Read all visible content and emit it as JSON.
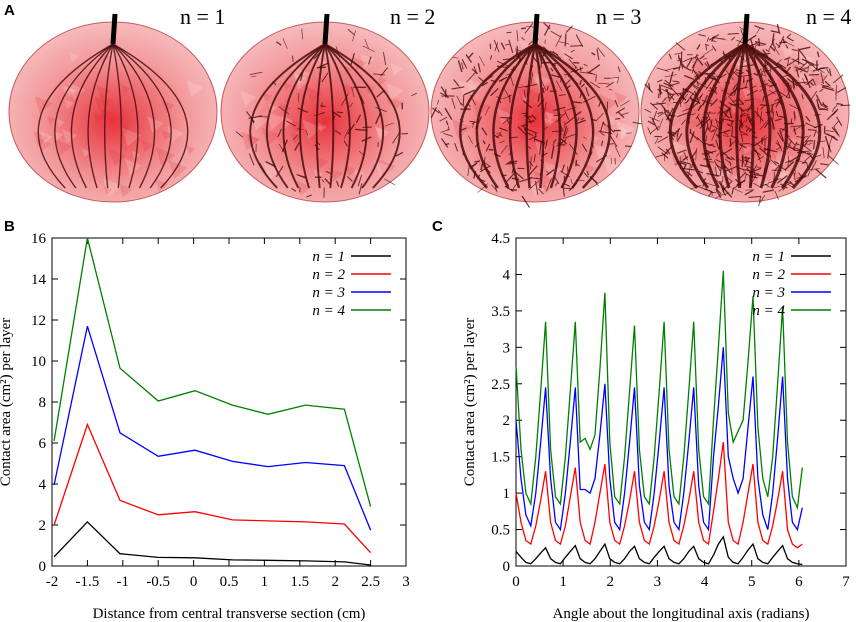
{
  "panels": {
    "a": "A",
    "b": "B",
    "c": "C"
  },
  "models": [
    {
      "label": "n = 1",
      "density": 1
    },
    {
      "label": "n = 2",
      "density": 2
    },
    {
      "label": "n = 3",
      "density": 3
    },
    {
      "label": "n = 4",
      "density": 4
    }
  ],
  "colors": {
    "fruit": "#e8323a",
    "fruit_light": "#f39a9c",
    "vessel": "#4a0b0b"
  },
  "chart_data": [
    {
      "type": "line",
      "xlabel": "Distance from central transverse section (cm)",
      "ylabel": "Contact area (cm²) per layer",
      "xlim": [
        -2,
        3
      ],
      "ylim": [
        0,
        16
      ],
      "xticks": [
        "-2",
        "-1.5",
        "-1",
        "-0.5",
        "0",
        "0.5",
        "1",
        "1.5",
        "2",
        "2.5",
        "3"
      ],
      "yticks": [
        "0",
        "2",
        "4",
        "6",
        "8",
        "10",
        "12",
        "14",
        "16"
      ],
      "x": [
        -1.97,
        -1.5,
        -1.04,
        -0.5,
        0.02,
        0.55,
        1.05,
        1.58,
        2.13,
        2.5
      ],
      "series": [
        {
          "name": "n = 1",
          "color": "#000000",
          "values": [
            0.45,
            2.15,
            0.6,
            0.42,
            0.4,
            0.3,
            0.28,
            0.25,
            0.2,
            0.05
          ]
        },
        {
          "name": "n = 2",
          "color": "#ff0000",
          "values": [
            2.0,
            6.9,
            3.2,
            2.5,
            2.65,
            2.25,
            2.2,
            2.15,
            2.05,
            0.65
          ]
        },
        {
          "name": "n = 3",
          "color": "#0000ff",
          "values": [
            3.95,
            11.7,
            6.5,
            5.35,
            5.65,
            5.1,
            4.85,
            5.05,
            4.9,
            1.75
          ]
        },
        {
          "name": "n = 4",
          "color": "#008000",
          "values": [
            6.1,
            16.0,
            9.65,
            8.05,
            8.55,
            7.85,
            7.4,
            7.85,
            7.65,
            2.9
          ]
        }
      ]
    },
    {
      "type": "line",
      "xlabel": "Angle about the longitudinal axis (radians)",
      "ylabel": "Contact area (cm²) per layer",
      "xlim": [
        0,
        7
      ],
      "ylim": [
        0,
        4.5
      ],
      "xticks": [
        "0",
        "1",
        "2",
        "3",
        "4",
        "5",
        "6",
        "7"
      ],
      "yticks": [
        "0",
        "0.5",
        "1",
        "1.5",
        "2",
        "2.5",
        "3",
        "3.5",
        "4",
        "4.5"
      ],
      "x": [
        0,
        0.105,
        0.209,
        0.314,
        0.419,
        0.524,
        0.628,
        0.733,
        0.838,
        0.942,
        1.047,
        1.152,
        1.257,
        1.361,
        1.466,
        1.571,
        1.676,
        1.78,
        1.885,
        1.99,
        2.094,
        2.199,
        2.304,
        2.409,
        2.513,
        2.618,
        2.723,
        2.827,
        2.932,
        3.037,
        3.142,
        3.246,
        3.351,
        3.456,
        3.56,
        3.665,
        3.77,
        3.875,
        3.979,
        4.084,
        4.189,
        4.294,
        4.398,
        4.503,
        4.608,
        4.712,
        4.817,
        4.922,
        5.027,
        5.131,
        5.236,
        5.341,
        5.445,
        5.55,
        5.655,
        5.76,
        5.864,
        5.969,
        6.074
      ],
      "series": [
        {
          "name": "n = 1",
          "color": "#000000",
          "values": [
            0.2,
            0.12,
            0.05,
            0.03,
            0.1,
            0.18,
            0.25,
            0.1,
            0.05,
            0.03,
            0.12,
            0.2,
            0.28,
            0.1,
            0.05,
            0.03,
            0.1,
            0.2,
            0.3,
            0.1,
            0.05,
            0.03,
            0.1,
            0.2,
            0.27,
            0.1,
            0.05,
            0.03,
            0.12,
            0.2,
            0.27,
            0.1,
            0.05,
            0.03,
            0.1,
            0.2,
            0.27,
            0.1,
            0.05,
            0.03,
            0.15,
            0.3,
            0.4,
            0.12,
            0.05,
            0.03,
            0.12,
            0.22,
            0.3,
            0.1,
            0.05,
            0.03,
            0.12,
            0.2,
            0.28,
            0.1,
            0.05,
            0.03,
            0.02
          ]
        },
        {
          "name": "n = 2",
          "color": "#ff0000",
          "values": [
            1.0,
            0.6,
            0.35,
            0.3,
            0.55,
            0.9,
            1.3,
            0.6,
            0.35,
            0.3,
            0.55,
            0.95,
            1.35,
            0.6,
            0.35,
            0.3,
            0.6,
            1.0,
            1.4,
            0.6,
            0.35,
            0.3,
            0.55,
            0.9,
            1.3,
            0.6,
            0.35,
            0.3,
            0.55,
            0.9,
            1.3,
            0.6,
            0.35,
            0.3,
            0.55,
            0.9,
            1.3,
            0.6,
            0.35,
            0.3,
            0.75,
            1.2,
            1.7,
            0.6,
            0.35,
            0.3,
            0.6,
            1.0,
            1.4,
            0.6,
            0.35,
            0.3,
            0.55,
            0.9,
            1.3,
            0.5,
            0.3,
            0.25,
            0.3
          ]
        },
        {
          "name": "n = 3",
          "color": "#0000ff",
          "values": [
            2.0,
            1.2,
            0.7,
            0.55,
            1.0,
            1.7,
            2.45,
            1.2,
            0.6,
            0.5,
            1.0,
            1.7,
            2.45,
            1.05,
            1.05,
            1.0,
            1.2,
            1.8,
            2.5,
            1.2,
            0.6,
            0.5,
            1.0,
            1.7,
            2.45,
            1.1,
            0.6,
            0.5,
            1.0,
            1.7,
            2.45,
            1.1,
            0.6,
            0.5,
            1.0,
            1.7,
            2.45,
            1.1,
            0.6,
            0.5,
            1.5,
            2.2,
            3.0,
            1.5,
            1.2,
            1.0,
            1.2,
            1.9,
            2.6,
            1.2,
            0.7,
            0.5,
            1.0,
            1.75,
            2.6,
            1.2,
            0.6,
            0.5,
            0.8
          ]
        },
        {
          "name": "n = 4",
          "color": "#008000",
          "values": [
            2.75,
            1.6,
            1.0,
            0.85,
            1.5,
            2.4,
            3.35,
            1.6,
            0.95,
            0.85,
            1.5,
            2.4,
            3.35,
            1.7,
            1.75,
            1.6,
            1.8,
            2.7,
            3.75,
            1.7,
            0.95,
            0.85,
            1.5,
            2.4,
            3.3,
            1.6,
            0.95,
            0.85,
            1.5,
            2.4,
            3.35,
            1.6,
            0.95,
            0.85,
            1.5,
            2.4,
            3.35,
            1.6,
            0.95,
            0.85,
            2.0,
            3.0,
            4.05,
            2.1,
            1.7,
            1.85,
            2.0,
            2.8,
            3.7,
            1.9,
            1.2,
            0.95,
            1.5,
            2.5,
            3.55,
            1.7,
            0.95,
            0.8,
            1.35
          ]
        }
      ]
    }
  ]
}
